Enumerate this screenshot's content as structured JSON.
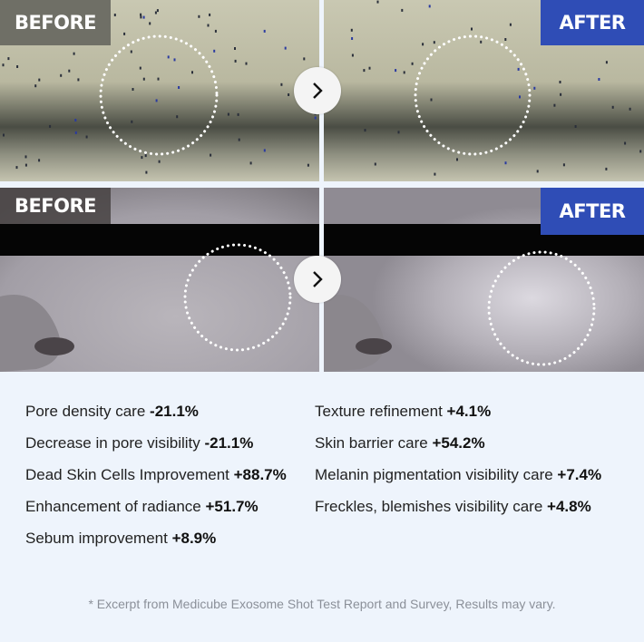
{
  "panels": {
    "top_before_label": "BEFORE",
    "top_after_label": "AFTER",
    "bottom_before_label": "BEFORE",
    "bottom_after_label": "AFTER",
    "arrow_icon": "chevron-right-icon"
  },
  "colors": {
    "after_badge": "#2f4db6",
    "before_badge": "#6f6f66",
    "background": "#eef4fc"
  },
  "stats_left": [
    {
      "label": "Pore density care",
      "value": "-21.1%"
    },
    {
      "label": "Decrease in pore visibility",
      "value": "-21.1%"
    },
    {
      "label": "Dead Skin Cells Improvement",
      "value": "+88.7%"
    },
    {
      "label": "Enhancement of radiance",
      "value": "+51.7%"
    },
    {
      "label": "Sebum improvement",
      "value": "+8.9%"
    }
  ],
  "stats_right": [
    {
      "label": "Texture refinement",
      "value": "+4.1%"
    },
    {
      "label": "Skin barrier care",
      "value": "+54.2%"
    },
    {
      "label": "Melanin pigmentation visibility care",
      "value": "+7.4%"
    },
    {
      "label": "Freckles, blemishes visibility care",
      "value": "+4.8%"
    }
  ],
  "footer": "* Excerpt from Medicube Exosome Shot Test Report and Survey, Results may vary."
}
